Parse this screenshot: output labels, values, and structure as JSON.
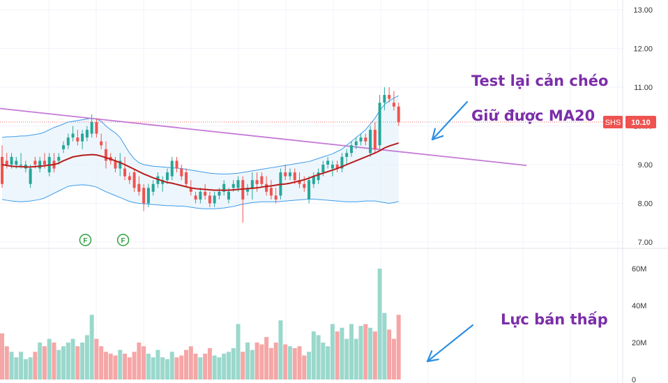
{
  "chart_data": {
    "type": "candlestick",
    "symbol": "SHS",
    "last_price": "10.10",
    "price_axis": {
      "ticks": [
        "13.00",
        "12.00",
        "11.00",
        "10.00",
        "9.00",
        "8.00",
        "7.00"
      ],
      "ylim": [
        7.0,
        13.0
      ]
    },
    "volume_axis": {
      "ticks": [
        "60M",
        "40M",
        "20M",
        "0"
      ],
      "ylim": [
        0,
        67
      ]
    },
    "candles": [
      [
        9.2,
        9.5,
        8.4,
        8.5
      ],
      [
        9.1,
        9.3,
        8.9,
        9.0
      ],
      [
        9.0,
        9.3,
        8.9,
        9.2
      ],
      [
        9.0,
        9.2,
        8.9,
        9.1
      ],
      [
        9.0,
        9.3,
        8.9,
        9.0
      ],
      [
        8.9,
        9.1,
        8.8,
        9.0
      ],
      [
        8.5,
        9.0,
        8.4,
        8.9
      ],
      [
        9.1,
        9.2,
        8.9,
        9.0
      ],
      [
        8.9,
        9.2,
        8.8,
        9.1
      ],
      [
        9.1,
        9.3,
        8.9,
        9.0
      ],
      [
        8.8,
        9.3,
        8.7,
        9.2
      ],
      [
        9.1,
        9.3,
        8.8,
        8.9
      ],
      [
        9.1,
        9.3,
        9.0,
        9.2
      ],
      [
        9.4,
        9.6,
        9.3,
        9.5
      ],
      [
        9.5,
        9.8,
        9.4,
        9.7
      ],
      [
        9.7,
        10.0,
        9.6,
        9.8
      ],
      [
        9.7,
        9.9,
        9.5,
        9.6
      ],
      [
        9.6,
        9.9,
        9.4,
        9.8
      ],
      [
        9.7,
        10.0,
        9.6,
        9.9
      ],
      [
        9.8,
        10.3,
        9.7,
        10.1
      ],
      [
        10.1,
        10.2,
        9.7,
        9.8
      ],
      [
        9.6,
        9.8,
        9.4,
        9.5
      ],
      [
        9.4,
        9.6,
        8.9,
        9.1
      ],
      [
        9.2,
        9.3,
        9.0,
        9.1
      ],
      [
        9.1,
        9.2,
        8.8,
        8.9
      ],
      [
        8.9,
        9.3,
        8.7,
        9.1
      ],
      [
        8.9,
        9.2,
        8.6,
        8.7
      ],
      [
        8.7,
        8.8,
        8.5,
        8.6
      ],
      [
        8.8,
        8.9,
        8.3,
        8.4
      ],
      [
        8.5,
        8.7,
        8.2,
        8.3
      ],
      [
        8.4,
        8.5,
        7.8,
        8.0
      ],
      [
        8.0,
        8.5,
        7.9,
        8.4
      ],
      [
        8.3,
        8.6,
        8.2,
        8.5
      ],
      [
        8.5,
        8.8,
        8.4,
        8.7
      ],
      [
        8.5,
        8.7,
        8.3,
        8.6
      ],
      [
        8.6,
        8.9,
        8.5,
        8.8
      ],
      [
        8.7,
        9.2,
        8.6,
        9.1
      ],
      [
        9.1,
        9.2,
        8.8,
        8.9
      ],
      [
        8.9,
        9.0,
        8.6,
        8.7
      ],
      [
        8.8,
        8.9,
        8.4,
        8.5
      ],
      [
        8.4,
        8.6,
        8.2,
        8.3
      ],
      [
        8.2,
        8.3,
        8.0,
        8.1
      ],
      [
        8.1,
        8.4,
        8.0,
        8.3
      ],
      [
        8.3,
        8.5,
        8.1,
        8.2
      ],
      [
        8.2,
        8.3,
        7.9,
        8.0
      ],
      [
        8.0,
        8.3,
        7.9,
        8.2
      ],
      [
        8.2,
        8.4,
        8.1,
        8.3
      ],
      [
        8.3,
        8.6,
        8.2,
        8.5
      ],
      [
        8.1,
        8.4,
        8.0,
        8.3
      ],
      [
        8.4,
        8.6,
        8.3,
        8.5
      ],
      [
        8.4,
        8.7,
        8.3,
        8.6
      ],
      [
        8.6,
        8.7,
        7.5,
        8.1
      ],
      [
        8.3,
        8.5,
        8.2,
        8.4
      ],
      [
        8.4,
        8.8,
        8.1,
        8.6
      ],
      [
        8.6,
        8.8,
        8.3,
        8.5
      ],
      [
        8.7,
        8.8,
        8.4,
        8.5
      ],
      [
        8.5,
        8.7,
        8.2,
        8.3
      ],
      [
        8.4,
        8.6,
        8.1,
        8.2
      ],
      [
        8.2,
        8.4,
        8.0,
        8.1
      ],
      [
        8.2,
        8.9,
        8.1,
        8.8
      ],
      [
        8.8,
        9.0,
        8.6,
        8.7
      ],
      [
        8.7,
        8.9,
        8.6,
        8.8
      ],
      [
        8.8,
        8.9,
        8.5,
        8.6
      ],
      [
        8.6,
        8.8,
        8.4,
        8.5
      ],
      [
        8.5,
        8.7,
        8.3,
        8.4
      ],
      [
        8.1,
        8.7,
        8.0,
        8.6
      ],
      [
        8.5,
        8.8,
        8.4,
        8.7
      ],
      [
        8.6,
        8.9,
        8.5,
        8.8
      ],
      [
        8.8,
        9.1,
        8.7,
        9.0
      ],
      [
        9.0,
        9.2,
        8.9,
        9.1
      ],
      [
        8.9,
        9.1,
        8.7,
        9.0
      ],
      [
        9.0,
        9.1,
        8.8,
        8.9
      ],
      [
        8.9,
        9.3,
        8.8,
        9.2
      ],
      [
        9.2,
        9.4,
        9.0,
        9.3
      ],
      [
        9.3,
        9.6,
        9.2,
        9.5
      ],
      [
        9.5,
        9.7,
        9.4,
        9.6
      ],
      [
        9.6,
        9.8,
        9.5,
        9.7
      ],
      [
        9.7,
        9.8,
        9.5,
        9.6
      ],
      [
        9.3,
        10.0,
        9.2,
        9.9
      ],
      [
        9.9,
        10.1,
        9.3,
        9.4
      ],
      [
        9.5,
        10.8,
        9.4,
        10.6
      ],
      [
        10.6,
        11.0,
        10.4,
        10.8
      ],
      [
        10.8,
        11.0,
        10.6,
        10.7
      ],
      [
        10.6,
        10.9,
        10.4,
        10.5
      ],
      [
        10.5,
        10.6,
        10.0,
        10.1
      ]
    ],
    "volume": [
      25,
      18,
      15,
      12,
      15,
      11,
      12,
      15,
      20,
      18,
      22,
      20,
      16,
      18,
      20,
      22,
      18,
      20,
      24,
      35,
      22,
      18,
      15,
      14,
      13,
      16,
      14,
      12,
      15,
      20,
      18,
      14,
      12,
      16,
      12,
      11,
      15,
      12,
      13,
      16,
      18,
      14,
      12,
      14,
      17,
      13,
      12,
      14,
      15,
      17,
      30,
      15,
      20,
      16,
      20,
      19,
      23,
      17,
      20,
      32,
      19,
      18,
      17,
      18,
      13,
      15,
      26,
      24,
      20,
      18,
      30,
      26,
      28,
      22,
      30,
      22,
      29,
      30,
      28,
      26,
      60,
      36,
      27,
      22,
      35
    ],
    "ma20": [
      9.0,
      8.98,
      8.96,
      8.95,
      8.95,
      8.94,
      8.94,
      8.95,
      8.96,
      8.97,
      8.99,
      9.0,
      9.04,
      9.1,
      9.15,
      9.2,
      9.22,
      9.24,
      9.25,
      9.26,
      9.25,
      9.22,
      9.18,
      9.14,
      9.1,
      9.05,
      9.0,
      8.94,
      8.88,
      8.82,
      8.76,
      8.71,
      8.66,
      8.62,
      8.58,
      8.54,
      8.52,
      8.49,
      8.46,
      8.43,
      8.4,
      8.38,
      8.37,
      8.36,
      8.35,
      8.34,
      8.34,
      8.34,
      8.34,
      8.35,
      8.36,
      8.37,
      8.38,
      8.39,
      8.4,
      8.42,
      8.44,
      8.45,
      8.47,
      8.49,
      8.5,
      8.52,
      8.55,
      8.58,
      8.61,
      8.65,
      8.7,
      8.74,
      8.78,
      8.82,
      8.86,
      8.9,
      8.95,
      9.0,
      9.05,
      9.1,
      9.15,
      9.2,
      9.25,
      9.3,
      9.36,
      9.43,
      9.48,
      9.52,
      9.56
    ],
    "bb_upper": [
      9.7,
      9.72,
      9.72,
      9.73,
      9.74,
      9.74,
      9.76,
      9.78,
      9.8,
      9.84,
      9.9,
      9.96,
      10.0,
      10.05,
      10.1,
      10.12,
      10.14,
      10.16,
      10.18,
      10.2,
      10.18,
      10.12,
      10.0,
      9.9,
      9.82,
      9.7,
      9.5,
      9.3,
      9.15,
      9.05,
      9.0,
      8.98,
      8.96,
      8.95,
      8.94,
      8.93,
      8.92,
      8.91,
      8.9,
      8.88,
      8.86,
      8.84,
      8.82,
      8.8,
      8.78,
      8.77,
      8.76,
      8.76,
      8.76,
      8.77,
      8.78,
      8.8,
      8.82,
      8.84,
      8.86,
      8.88,
      8.9,
      8.92,
      8.94,
      8.96,
      8.98,
      9.0,
      9.02,
      9.04,
      9.06,
      9.08,
      9.12,
      9.16,
      9.2,
      9.24,
      9.28,
      9.34,
      9.4,
      9.5,
      9.6,
      9.7,
      9.8,
      9.9,
      10.05,
      10.2,
      10.4,
      10.55,
      10.65,
      10.72,
      10.78
    ],
    "bb_lower": [
      8.1,
      8.08,
      8.06,
      8.05,
      8.04,
      8.05,
      8.06,
      8.08,
      8.1,
      8.14,
      8.2,
      8.26,
      8.32,
      8.38,
      8.44,
      8.46,
      8.47,
      8.48,
      8.47,
      8.45,
      8.42,
      8.36,
      8.3,
      8.25,
      8.2,
      8.15,
      8.1,
      8.05,
      8.02,
      8.0,
      7.99,
      7.98,
      7.97,
      7.96,
      7.95,
      7.94,
      7.94,
      7.93,
      7.93,
      7.92,
      7.9,
      7.88,
      7.87,
      7.86,
      7.86,
      7.86,
      7.87,
      7.88,
      7.9,
      7.92,
      7.95,
      7.98,
      8.0,
      8.02,
      8.03,
      8.04,
      8.04,
      8.04,
      8.04,
      8.05,
      8.06,
      8.07,
      8.08,
      8.09,
      8.1,
      8.11,
      8.11,
      8.1,
      8.09,
      8.08,
      8.07,
      8.06,
      8.05,
      8.04,
      8.04,
      8.04,
      8.05,
      8.06,
      8.06,
      8.06,
      8.04,
      8.02,
      8.0,
      8.02,
      8.05
    ],
    "trendline": {
      "from": [
        0,
        10.45
      ],
      "to": [
        134,
        8.98
      ]
    },
    "f_markers": [
      20,
      28
    ],
    "colors": {
      "up": "#26a69a",
      "down": "#ef5350",
      "up_vol": "#9ad8cc",
      "down_vol": "#f5a6a6",
      "ma": "#b71c1c",
      "band": "#3d9be9",
      "band_fill": "#e6f2fb",
      "trend": "#c479d6",
      "arrow": "#2c8fe3",
      "price_label": "#ef5350"
    }
  },
  "annotations": {
    "test_line": "Test lại cản chéo",
    "hold_ma": "Giữ được MA20",
    "low_sell": "Lực bán thấp"
  },
  "markers": {
    "f_label": "F"
  }
}
